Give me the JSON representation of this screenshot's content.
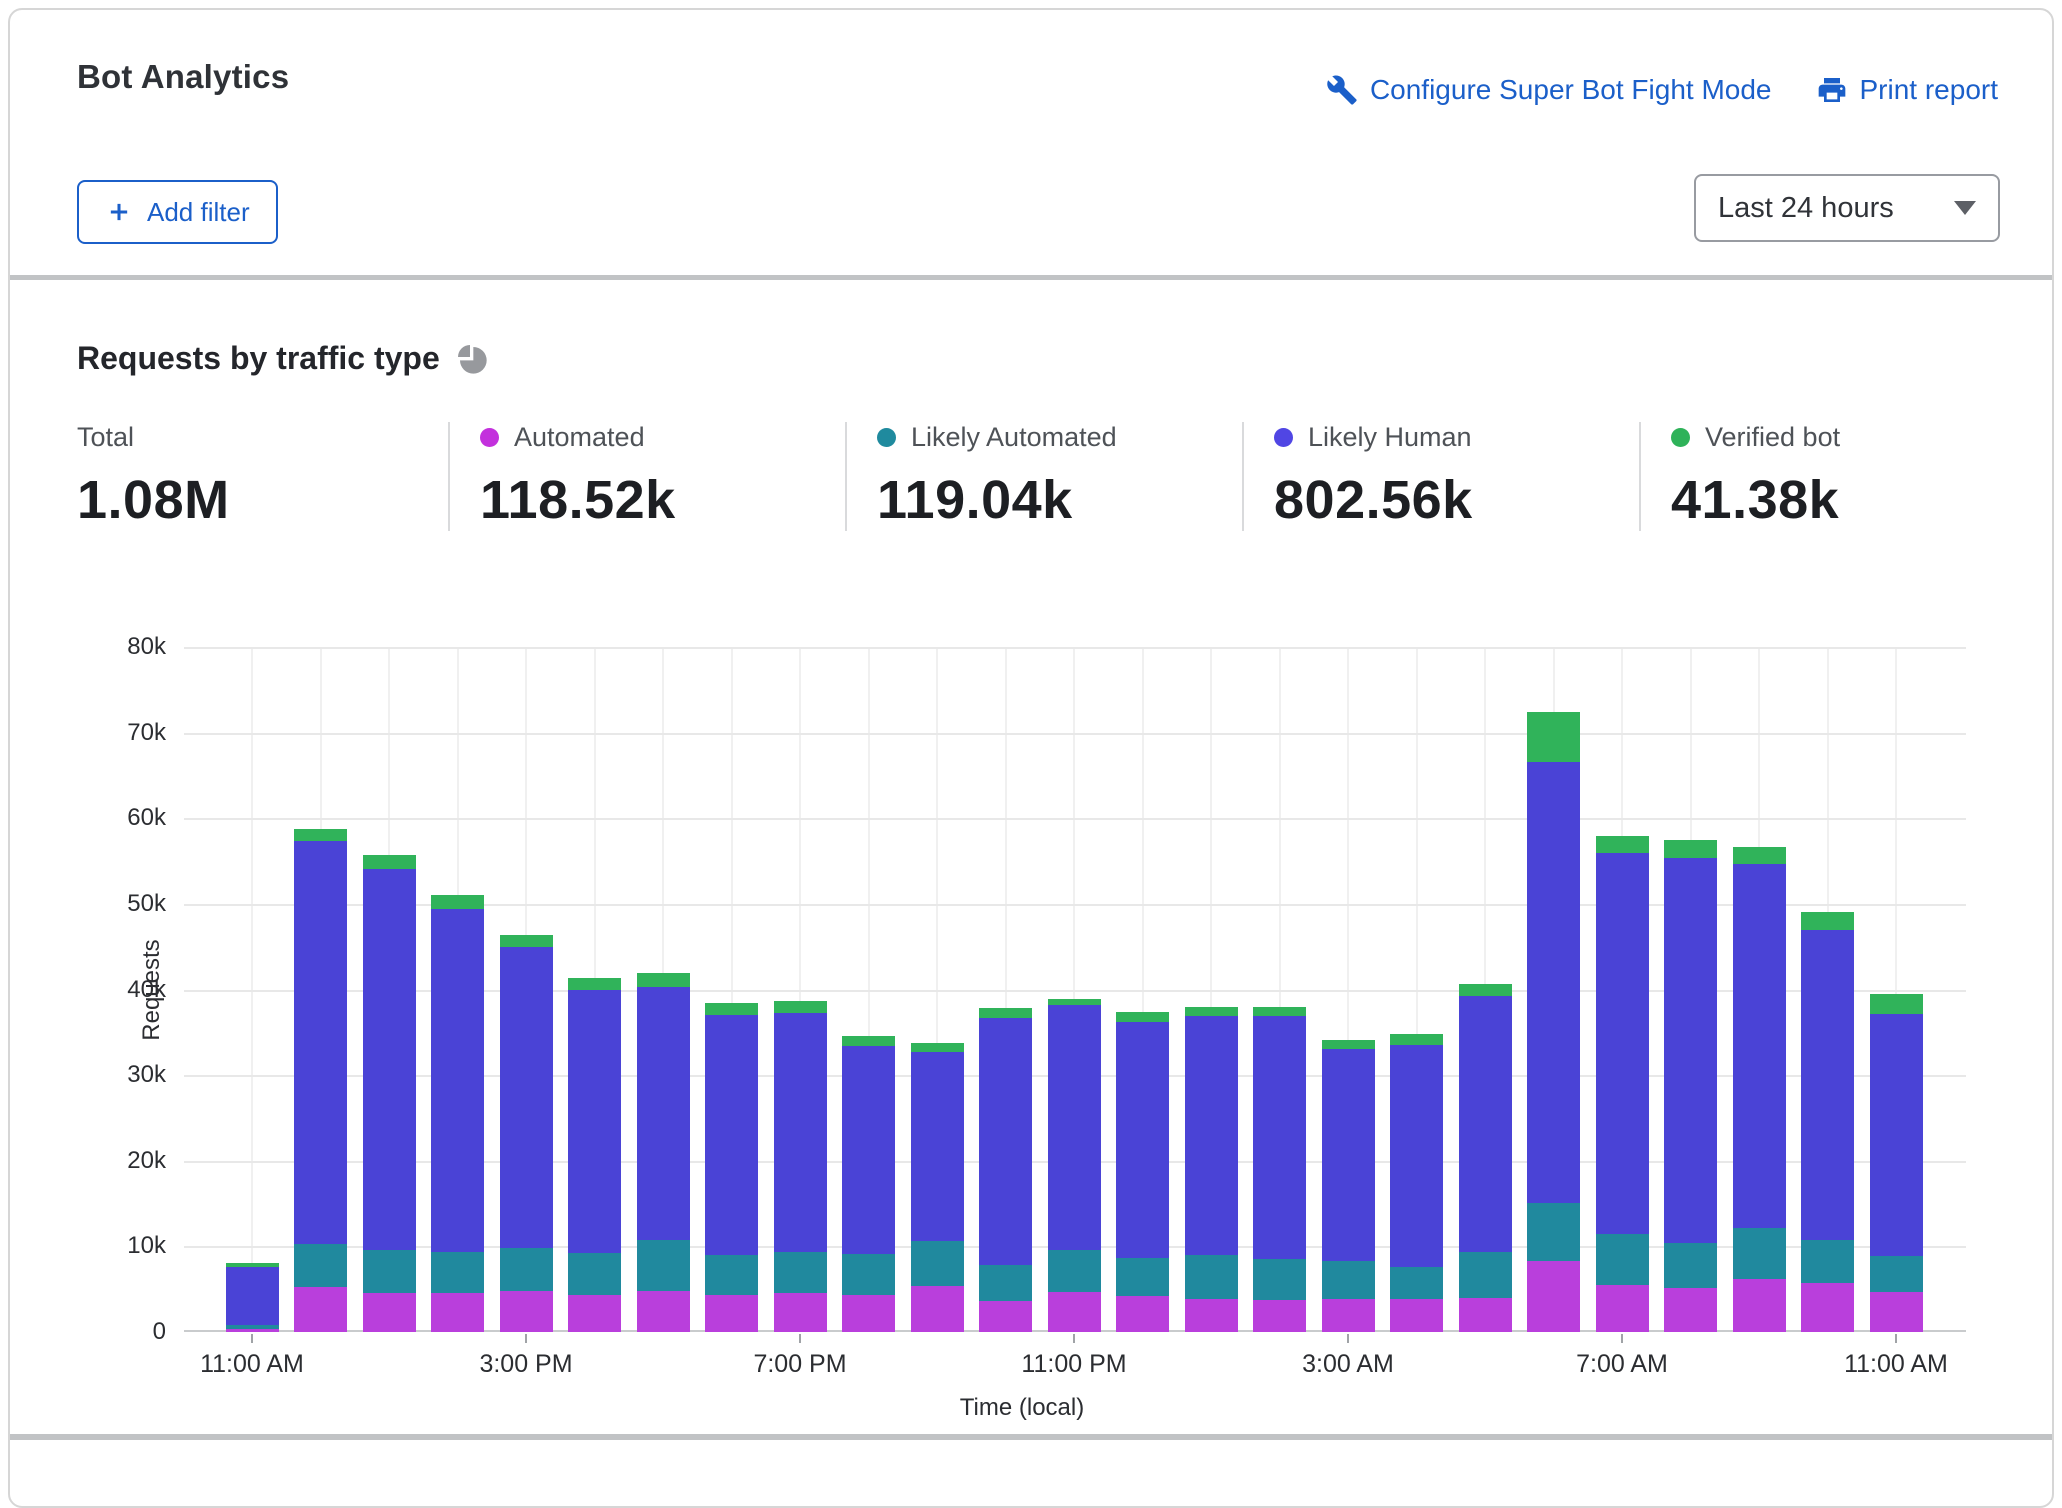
{
  "header": {
    "title": "Bot Analytics",
    "configure_link": "Configure Super Bot Fight Mode",
    "print_link": "Print report",
    "add_filter_label": "Add filter",
    "time_range": "Last 24 hours",
    "link_color": "#1b5fc9"
  },
  "section": {
    "title": "Requests by traffic type"
  },
  "stats": [
    {
      "label": "Total",
      "value": "1.08M",
      "color": null
    },
    {
      "label": "Automated",
      "value": "118.52k",
      "color": "#c330dd"
    },
    {
      "label": "Likely Automated",
      "value": "119.04k",
      "color": "#1f8a9e"
    },
    {
      "label": "Likely Human",
      "value": "802.56k",
      "color": "#5046e4"
    },
    {
      "label": "Verified bot",
      "value": "41.38k",
      "color": "#2eb259"
    }
  ],
  "chart_data": {
    "type": "bar",
    "stacked": true,
    "title": "Requests by traffic type",
    "xlabel": "Time (local)",
    "ylabel": "Requests",
    "ylim": [
      0,
      80000
    ],
    "value_unit": "thousands of requests",
    "grid": true,
    "y_ticks": [
      "0",
      "10k",
      "20k",
      "30k",
      "40k",
      "50k",
      "60k",
      "70k",
      "80k"
    ],
    "categories": [
      "11:00 AM",
      "12:00 PM",
      "1:00 PM",
      "2:00 PM",
      "3:00 PM",
      "4:00 PM",
      "5:00 PM",
      "6:00 PM",
      "7:00 PM",
      "8:00 PM",
      "9:00 PM",
      "10:00 PM",
      "11:00 PM",
      "12:00 AM",
      "1:00 AM",
      "2:00 AM",
      "3:00 AM",
      "4:00 AM",
      "5:00 AM",
      "6:00 AM",
      "7:00 AM",
      "8:00 AM",
      "9:00 AM",
      "10:00 AM",
      "11:00 AM"
    ],
    "x_ticks": [
      [
        0,
        "11:00 AM"
      ],
      [
        4,
        "3:00 PM"
      ],
      [
        8,
        "7:00 PM"
      ],
      [
        12,
        "11:00 PM"
      ],
      [
        16,
        "3:00 AM"
      ],
      [
        20,
        "7:00 AM"
      ],
      [
        24,
        "11:00 AM"
      ]
    ],
    "series": [
      {
        "name": "Automated",
        "color": "#b93fdc",
        "values": [
          0.3,
          5.2,
          4.6,
          4.5,
          4.8,
          4.3,
          4.8,
          4.3,
          4.6,
          4.3,
          5.4,
          3.6,
          4.7,
          4.2,
          3.8,
          3.7,
          3.8,
          3.9,
          4.0,
          8.3,
          5.5,
          5.1,
          6.2,
          5.7,
          4.7
        ]
      },
      {
        "name": "Likely Automated",
        "color": "#20899e",
        "values": [
          0.5,
          5.1,
          5.0,
          4.9,
          5.0,
          4.9,
          6.0,
          4.7,
          4.8,
          4.8,
          5.2,
          4.2,
          4.9,
          4.5,
          5.2,
          4.8,
          4.5,
          3.7,
          5.3,
          6.8,
          5.9,
          5.3,
          5.9,
          5.0,
          4.2
        ]
      },
      {
        "name": "Likely Human",
        "color": "#4a43d6",
        "values": [
          6.8,
          47.1,
          44.5,
          40.0,
          35.2,
          30.8,
          29.5,
          28.0,
          27.9,
          24.3,
          22.1,
          28.9,
          28.6,
          27.5,
          27.9,
          28.4,
          24.7,
          25.9,
          29.9,
          51.5,
          44.6,
          45.0,
          42.5,
          36.2,
          28.2
        ]
      },
      {
        "name": "Verified bot",
        "color": "#30b35a",
        "values": [
          0.5,
          1.3,
          1.6,
          1.6,
          1.4,
          1.4,
          1.6,
          1.4,
          1.3,
          1.2,
          1.1,
          1.1,
          0.7,
          1.2,
          1.0,
          1.0,
          1.1,
          1.3,
          1.4,
          5.8,
          1.9,
          2.1,
          2.0,
          2.2,
          2.4
        ]
      }
    ]
  }
}
